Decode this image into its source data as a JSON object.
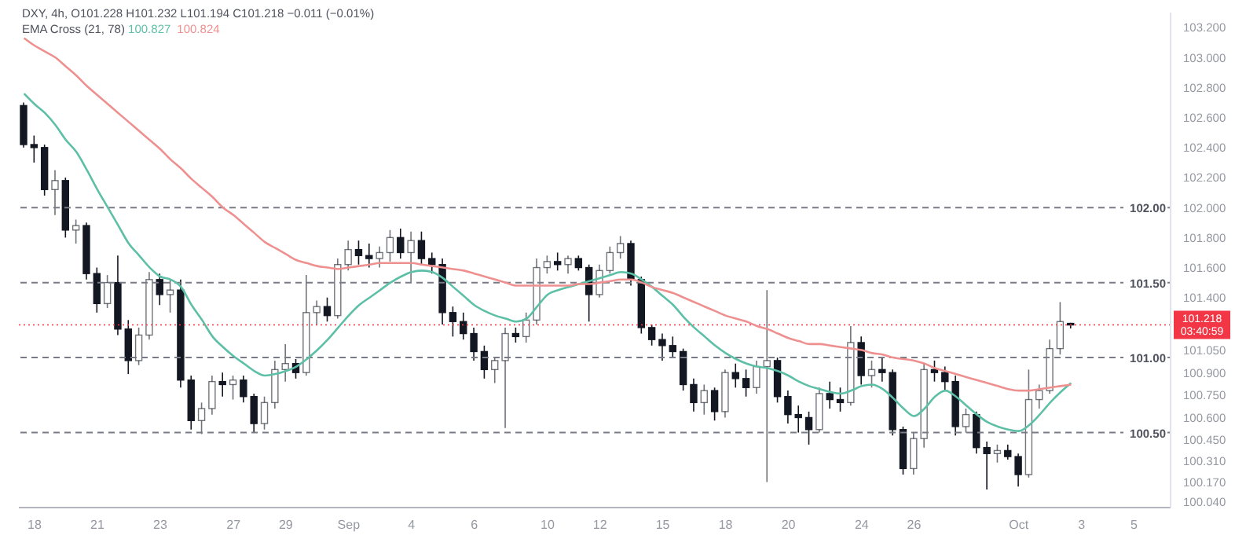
{
  "chart_data": {
    "type": "candlestick",
    "title": "DXY, 4h, O101.228 H101.232 L101.194 C101.218 −0.011 (−0.01%)",
    "categories": [
      null,
      "18",
      null,
      null,
      null,
      null,
      null,
      "21",
      null,
      null,
      null,
      null,
      null,
      "23",
      null,
      null,
      null,
      null,
      null,
      null,
      "27",
      null,
      null,
      null,
      null,
      "29",
      null,
      null,
      null,
      null,
      null,
      "Sep",
      null,
      null,
      null,
      null,
      null,
      "4",
      null,
      null,
      null,
      null,
      null,
      "6",
      null,
      null,
      null,
      null,
      null,
      null,
      "10",
      null,
      null,
      null,
      null,
      "12",
      null,
      null,
      null,
      null,
      null,
      "15",
      null,
      null,
      null,
      null,
      null,
      "18",
      null,
      null,
      null,
      null,
      null,
      "20",
      null,
      null,
      null,
      null,
      null,
      null,
      "24",
      null,
      null,
      null,
      null,
      "26",
      null,
      null,
      null,
      null,
      null,
      null,
      null,
      null,
      null,
      "Oct",
      null,
      null,
      null,
      null,
      null,
      "3",
      null,
      null,
      null,
      null,
      "5",
      null,
      null,
      null
    ],
    "series": [
      {
        "type": "candlestick",
        "color": "#131722",
        "ohlc": [
          [
            102.68,
            102.7,
            102.4,
            102.42
          ],
          [
            102.42,
            102.48,
            102.3,
            102.4
          ],
          [
            102.4,
            102.42,
            102.08,
            102.12
          ],
          [
            102.12,
            102.25,
            101.95,
            102.18
          ],
          [
            102.18,
            102.2,
            101.8,
            101.85
          ],
          [
            101.85,
            101.92,
            101.76,
            101.88
          ],
          [
            101.88,
            101.9,
            101.52,
            101.56
          ],
          [
            101.56,
            101.6,
            101.3,
            101.36
          ],
          [
            101.36,
            101.55,
            101.33,
            101.5
          ],
          [
            101.5,
            101.68,
            101.15,
            101.19
          ],
          [
            101.19,
            101.25,
            100.89,
            100.98
          ],
          [
            100.98,
            101.2,
            100.95,
            101.15
          ],
          [
            101.15,
            101.57,
            101.12,
            101.52
          ],
          [
            101.52,
            101.56,
            101.35,
            101.42
          ],
          [
            101.42,
            101.52,
            101.3,
            101.45
          ],
          [
            101.45,
            101.52,
            100.8,
            100.85
          ],
          [
            100.85,
            100.88,
            100.52,
            100.58
          ],
          [
            100.58,
            100.7,
            100.49,
            100.66
          ],
          [
            100.66,
            100.88,
            100.62,
            100.84
          ],
          [
            100.84,
            100.9,
            100.74,
            100.82
          ],
          [
            100.82,
            100.88,
            100.72,
            100.85
          ],
          [
            100.85,
            100.88,
            100.7,
            100.74
          ],
          [
            100.74,
            100.76,
            100.5,
            100.56
          ],
          [
            100.56,
            100.74,
            100.52,
            100.7
          ],
          [
            100.7,
            100.98,
            100.66,
            100.92
          ],
          [
            100.92,
            101.09,
            100.84,
            100.96
          ],
          [
            100.96,
            100.99,
            100.86,
            100.9
          ],
          [
            100.9,
            101.55,
            100.88,
            101.3
          ],
          [
            101.3,
            101.38,
            101.22,
            101.34
          ],
          [
            101.34,
            101.4,
            101.24,
            101.28
          ],
          [
            101.28,
            101.66,
            101.26,
            101.62
          ],
          [
            101.62,
            101.78,
            101.58,
            101.72
          ],
          [
            101.72,
            101.78,
            101.62,
            101.68
          ],
          [
            101.68,
            101.76,
            101.6,
            101.66
          ],
          [
            101.66,
            101.74,
            101.6,
            101.7
          ],
          [
            101.7,
            101.85,
            101.64,
            101.8
          ],
          [
            101.8,
            101.86,
            101.66,
            101.7
          ],
          [
            101.7,
            101.84,
            101.5,
            101.78
          ],
          [
            101.78,
            101.84,
            101.62,
            101.66
          ],
          [
            101.66,
            101.7,
            101.56,
            101.62
          ],
          [
            101.62,
            101.66,
            101.22,
            101.3
          ],
          [
            101.3,
            101.34,
            101.14,
            101.24
          ],
          [
            101.24,
            101.3,
            101.12,
            101.16
          ],
          [
            101.16,
            101.2,
            100.98,
            101.04
          ],
          [
            101.04,
            101.08,
            100.86,
            100.92
          ],
          [
            100.92,
            101,
            100.83,
            100.98
          ],
          [
            100.98,
            101.2,
            100.53,
            101.16
          ],
          [
            101.16,
            101.2,
            101.1,
            101.14
          ],
          [
            101.14,
            101.3,
            101.1,
            101.25
          ],
          [
            101.25,
            101.66,
            101.22,
            101.6
          ],
          [
            101.6,
            101.68,
            101.56,
            101.64
          ],
          [
            101.64,
            101.7,
            101.58,
            101.62
          ],
          [
            101.62,
            101.68,
            101.56,
            101.66
          ],
          [
            101.66,
            101.68,
            101.58,
            101.6
          ],
          [
            101.6,
            101.62,
            101.24,
            101.42
          ],
          [
            101.42,
            101.62,
            101.4,
            101.58
          ],
          [
            101.58,
            101.74,
            101.56,
            101.7
          ],
          [
            101.7,
            101.81,
            101.66,
            101.76
          ],
          [
            101.76,
            101.78,
            101.48,
            101.52
          ],
          [
            101.52,
            101.54,
            101.16,
            101.2
          ],
          [
            101.2,
            101.22,
            101.08,
            101.12
          ],
          [
            101.12,
            101.16,
            100.98,
            101.08
          ],
          [
            101.08,
            101.14,
            101,
            101.04
          ],
          [
            101.04,
            101.06,
            100.78,
            100.82
          ],
          [
            100.82,
            100.86,
            100.64,
            100.7
          ],
          [
            100.7,
            100.82,
            100.62,
            100.78
          ],
          [
            100.78,
            100.8,
            100.58,
            100.64
          ],
          [
            100.64,
            100.92,
            100.6,
            100.9
          ],
          [
            100.9,
            100.96,
            100.8,
            100.86
          ],
          [
            100.86,
            100.92,
            100.74,
            100.8
          ],
          [
            100.8,
            100.98,
            100.76,
            100.94
          ],
          [
            100.94,
            101.45,
            100.17,
            100.98
          ],
          [
            100.98,
            101,
            100.7,
            100.74
          ],
          [
            100.74,
            100.78,
            100.56,
            100.62
          ],
          [
            100.62,
            100.68,
            100.5,
            100.6
          ],
          [
            100.6,
            100.64,
            100.42,
            100.52
          ],
          [
            100.52,
            100.8,
            100.5,
            100.76
          ],
          [
            100.76,
            100.84,
            100.66,
            100.72
          ],
          [
            100.72,
            100.8,
            100.64,
            100.7
          ],
          [
            100.7,
            101.21,
            100.68,
            101.1
          ],
          [
            101.1,
            101.14,
            100.82,
            100.88
          ],
          [
            100.88,
            100.98,
            100.8,
            100.92
          ],
          [
            100.92,
            101,
            100.84,
            100.9
          ],
          [
            100.9,
            100.92,
            100.48,
            100.52
          ],
          [
            100.52,
            100.54,
            100.22,
            100.26
          ],
          [
            100.26,
            100.5,
            100.22,
            100.46
          ],
          [
            100.46,
            100.96,
            100.4,
            100.92
          ],
          [
            100.92,
            100.98,
            100.84,
            100.9
          ],
          [
            100.9,
            100.94,
            100.78,
            100.84
          ],
          [
            100.84,
            100.88,
            100.48,
            100.54
          ],
          [
            100.54,
            100.66,
            100.5,
            100.62
          ],
          [
            100.62,
            100.64,
            100.36,
            100.4
          ],
          [
            100.4,
            100.44,
            100.12,
            100.36
          ],
          [
            100.36,
            100.42,
            100.3,
            100.38
          ],
          [
            100.38,
            100.42,
            100.32,
            100.34
          ],
          [
            100.34,
            100.36,
            100.14,
            100.22
          ],
          [
            100.22,
            100.92,
            100.2,
            100.72
          ],
          [
            100.72,
            100.82,
            100.66,
            100.78
          ],
          [
            100.78,
            101.12,
            100.76,
            101.06
          ],
          [
            101.06,
            101.37,
            101.02,
            101.24
          ],
          [
            101.228,
            101.232,
            101.194,
            101.218
          ],
          null,
          null,
          null,
          null,
          null,
          null,
          null,
          null,
          null
        ]
      },
      {
        "type": "line",
        "color": "#5cbfa6",
        "values": [
          102.76,
          102.69,
          102.63,
          102.55,
          102.45,
          102.37,
          102.25,
          102.12,
          102.0,
          101.88,
          101.76,
          101.68,
          101.6,
          101.54,
          101.52,
          101.47,
          101.35,
          101.25,
          101.14,
          101.07,
          101.01,
          100.96,
          100.91,
          100.88,
          100.89,
          100.91,
          100.94,
          100.99,
          101.05,
          101.12,
          101.2,
          101.28,
          101.35,
          101.4,
          101.45,
          101.5,
          101.54,
          101.57,
          101.58,
          101.57,
          101.53,
          101.47,
          101.41,
          101.35,
          101.31,
          101.28,
          101.26,
          101.24,
          101.26,
          101.34,
          101.42,
          101.45,
          101.47,
          101.49,
          101.51,
          101.53,
          101.55,
          101.57,
          101.56,
          101.52,
          101.47,
          101.41,
          101.35,
          101.27,
          101.2,
          101.14,
          101.08,
          101.03,
          100.99,
          100.96,
          100.94,
          100.93,
          100.91,
          100.88,
          100.84,
          100.81,
          100.79,
          100.77,
          100.76,
          100.78,
          100.81,
          100.82,
          100.79,
          100.73,
          100.66,
          100.61,
          100.66,
          100.74,
          100.78,
          100.74,
          100.68,
          100.62,
          100.57,
          100.54,
          100.52,
          100.51,
          100.55,
          100.62,
          100.7,
          100.77,
          100.83,
          null,
          null,
          null,
          null,
          null,
          null,
          null,
          null,
          null
        ]
      },
      {
        "type": "line",
        "color": "#ef9090",
        "values": [
          103.13,
          103.08,
          103.04,
          103.0,
          102.94,
          102.88,
          102.81,
          102.75,
          102.69,
          102.63,
          102.57,
          102.51,
          102.45,
          102.39,
          102.32,
          102.26,
          102.19,
          102.13,
          102.07,
          102.0,
          101.95,
          101.89,
          101.83,
          101.77,
          101.73,
          101.69,
          101.65,
          101.63,
          101.61,
          101.6,
          101.59,
          101.6,
          101.61,
          101.62,
          101.63,
          101.63,
          101.63,
          101.63,
          101.62,
          101.61,
          101.6,
          101.59,
          101.58,
          101.56,
          101.54,
          101.52,
          101.5,
          101.48,
          101.48,
          101.48,
          101.48,
          101.48,
          101.48,
          101.49,
          101.49,
          101.5,
          101.51,
          101.52,
          101.52,
          101.5,
          101.47,
          101.45,
          101.43,
          101.4,
          101.37,
          101.34,
          101.31,
          101.28,
          101.26,
          101.24,
          101.21,
          101.19,
          101.16,
          101.13,
          101.11,
          101.09,
          101.09,
          101.08,
          101.07,
          101.06,
          101.05,
          101.03,
          101.02,
          101.0,
          100.99,
          100.98,
          100.96,
          100.93,
          100.91,
          100.89,
          100.87,
          100.85,
          100.83,
          100.81,
          100.79,
          100.78,
          100.78,
          100.79,
          100.8,
          100.81,
          100.82,
          null,
          null,
          null,
          null,
          null,
          null,
          null,
          null,
          null
        ]
      }
    ],
    "ylim": [
      100.0,
      103.3
    ],
    "yticks": [
      {
        "value": 100.04,
        "label": "100.040"
      },
      {
        "value": 100.17,
        "label": "100.170"
      },
      {
        "value": 100.31,
        "label": "100.310"
      },
      {
        "value": 100.45,
        "label": "100.450"
      },
      {
        "value": 100.6,
        "label": "100.600"
      },
      {
        "value": 100.75,
        "label": "100.750"
      },
      {
        "value": 100.9,
        "label": "100.900"
      },
      {
        "value": 101.05,
        "label": "101.050"
      },
      {
        "value": 101.4,
        "label": "101.400"
      },
      {
        "value": 101.6,
        "label": "101.600"
      },
      {
        "value": 101.8,
        "label": "101.800"
      },
      {
        "value": 102.0,
        "label": "102.000"
      },
      {
        "value": 102.2,
        "label": "102.200"
      },
      {
        "value": 102.4,
        "label": "102.400"
      },
      {
        "value": 102.6,
        "label": "102.600"
      },
      {
        "value": 102.8,
        "label": "102.800"
      },
      {
        "value": 103.0,
        "label": "103.000"
      },
      {
        "value": 103.2,
        "label": "103.200"
      }
    ],
    "ref_lines": [
      {
        "axis": "y",
        "value": 102.0,
        "label": "102.00",
        "color": "#787b86",
        "line_style": "dashed"
      },
      {
        "axis": "y",
        "value": 101.5,
        "label": "101.50",
        "color": "#787b86",
        "line_style": "dashed"
      },
      {
        "axis": "y",
        "value": 101.0,
        "label": "101.00",
        "color": "#787b86",
        "line_style": "dashed"
      },
      {
        "axis": "y",
        "value": 100.5,
        "label": "100.50",
        "color": "#787b86",
        "line_style": "dashed"
      },
      {
        "axis": "y",
        "value": 101.218,
        "label": "101.218",
        "color": "#f23645",
        "line_style": "dotted"
      }
    ],
    "annotations": [
      "EMA Cross (21, 78)",
      "100.827",
      "100.824",
      "03:40:59"
    ],
    "grid": false,
    "legend": false,
    "marker": "none"
  }
}
